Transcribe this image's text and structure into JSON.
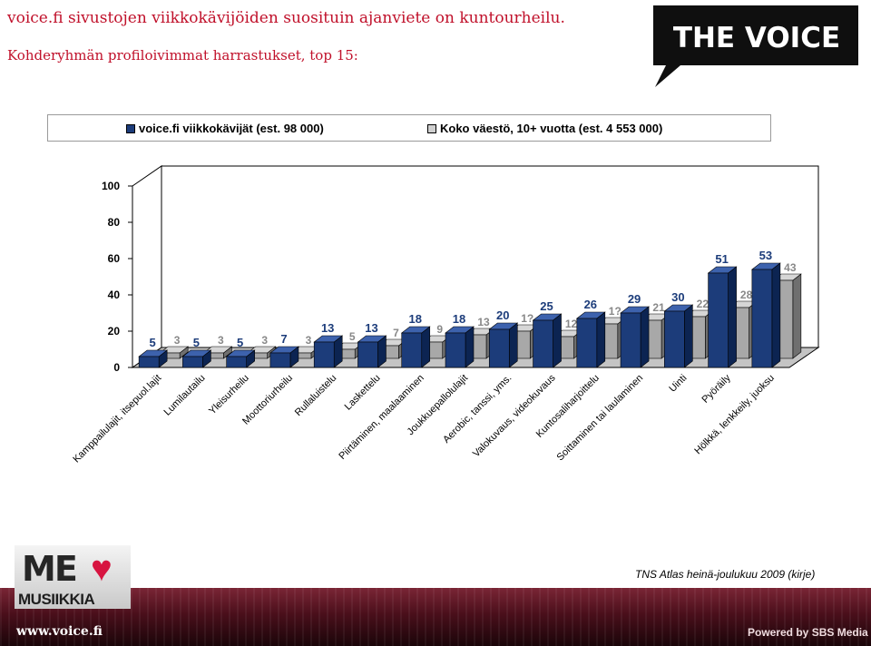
{
  "header": {
    "headline": "voice.fi sivustojen viikkokävijöiden suosituin ajanviete on kuntourheilu.",
    "subheadline": "Kohderyhmän profiloivimmat harrastukset, top 15:",
    "logo_text": "THE VOICE"
  },
  "colors": {
    "series_primary": "#1c3c7a",
    "series_secondary": "#a8a8a8",
    "brand_red": "#c0102a"
  },
  "chart_data": {
    "type": "bar",
    "title": "",
    "xlabel": "",
    "ylabel": "",
    "ylim": [
      0,
      100
    ],
    "yticks": [
      0,
      20,
      40,
      60,
      80,
      100
    ],
    "grid": false,
    "legend_position": "top",
    "categories": [
      "Kamppailulajit, itsepuol.lajit",
      "Lumilautailu",
      "Yleisurheilu",
      "Moottoriurheilu",
      "Rullaluistelu",
      "Laskettelu",
      "Piirtäminen, maalaaminen",
      "Joukkuepallolulajit",
      "Aerobic, tanssi, yms.",
      "Valokuvaus, videokuvaus",
      "Kuntosaliharjoittelu",
      "Soittaminen tai laulaminen",
      "Uinti",
      "Pyöräily",
      "Hölkkä, lenkkeily, juoksu"
    ],
    "series": [
      {
        "name": "voice.fi viikkokävijät (est. 98 000)",
        "values": [
          5,
          5,
          5,
          7,
          13,
          13,
          18,
          18,
          20,
          25,
          26,
          29,
          30,
          51,
          53
        ]
      },
      {
        "name": "Koko väestö, 10+ vuotta (est. 4 553 000)",
        "values": [
          3,
          3,
          3,
          3,
          5,
          7,
          9,
          13,
          15,
          12,
          19,
          21,
          23,
          28,
          43
        ]
      }
    ],
    "secondary_labels": [
      "3",
      "3",
      "3",
      "3",
      "5",
      "7",
      "9",
      "13",
      "1?",
      "12",
      "1?",
      "21",
      "22",
      "28",
      "43"
    ]
  },
  "footer": {
    "source": "TNS Atlas heinä-joulukuu  2009 (kirje)",
    "url": "www.voice.fi",
    "powered": "Powered by SBS Media",
    "me_logo_text": "ME",
    "me_logo_sub": "MUSIIKKIA"
  }
}
